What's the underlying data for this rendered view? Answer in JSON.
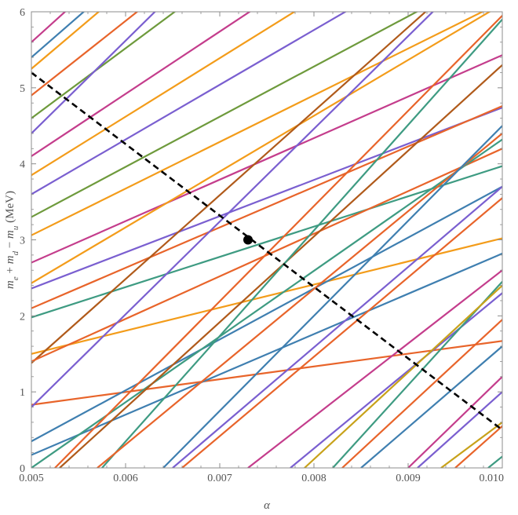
{
  "chart_data": {
    "type": "line",
    "xlabel": "α",
    "ylabel": {
      "parts": [
        {
          "text": "m",
          "italic": true
        },
        {
          "text": "e",
          "italic": true,
          "sub": true
        },
        {
          "text": " + ",
          "italic": false
        },
        {
          "text": "m",
          "italic": true
        },
        {
          "text": "d",
          "italic": true,
          "sub": true
        },
        {
          "text": " − ",
          "italic": false
        },
        {
          "text": "m",
          "italic": true
        },
        {
          "text": "u",
          "italic": true,
          "sub": true
        },
        {
          "text": " (MeV)",
          "italic": false
        }
      ]
    },
    "xlim": [
      0.005,
      0.01
    ],
    "ylim": [
      0,
      6
    ],
    "xticks": [
      {
        "value": 0.005,
        "label": "0.005"
      },
      {
        "value": 0.006,
        "label": "0.006"
      },
      {
        "value": 0.007,
        "label": "0.007"
      },
      {
        "value": 0.008,
        "label": "0.008"
      },
      {
        "value": 0.009,
        "label": "0.009"
      },
      {
        "value": 0.01,
        "label": "0.010"
      }
    ],
    "yticks": [
      {
        "value": 0,
        "label": "0"
      },
      {
        "value": 1,
        "label": "1"
      },
      {
        "value": 2,
        "label": "2"
      },
      {
        "value": 3,
        "label": "3"
      },
      {
        "value": 4,
        "label": "4"
      },
      {
        "value": 5,
        "label": "5"
      },
      {
        "value": 6,
        "label": "6"
      }
    ],
    "grid": false,
    "lines": [
      {
        "color": "#e8642a",
        "x": [
          0.005,
          0.01
        ],
        "y": [
          0.83,
          1.67
        ]
      },
      {
        "color": "#3f7fb0",
        "x": [
          0.005,
          0.01
        ],
        "y": [
          0.17,
          2.82
        ]
      },
      {
        "color": "#f39c1a",
        "x": [
          0.005,
          0.01
        ],
        "y": [
          1.5,
          3.02
        ]
      },
      {
        "color": "#3e9b82",
        "x": [
          0.005,
          0.01
        ],
        "y": [
          1.98,
          3.97
        ]
      },
      {
        "color": "#c43d8c",
        "x": [
          0.005,
          0.01
        ],
        "y": [
          2.7,
          5.43
        ]
      },
      {
        "color": "#7a5fd0",
        "x": [
          0.005,
          0.01
        ],
        "y": [
          2.36,
          4.74
        ]
      },
      {
        "color": "#f39c1a",
        "x": [
          0.005,
          0.01
        ],
        "y": [
          2.43,
          6.1
        ]
      },
      {
        "color": "#e8642a",
        "x": [
          0.005,
          0.01
        ],
        "y": [
          2.1,
          4.76
        ]
      },
      {
        "color": "#3f7fb0",
        "x": [
          0.005,
          0.01
        ],
        "y": [
          0.35,
          3.7
        ]
      },
      {
        "color": "#6e9a3c",
        "x": [
          0.005,
          0.01
        ],
        "y": [
          3.3,
          6.6
        ]
      },
      {
        "color": "#7a5fd0",
        "x": [
          0.005,
          0.01
        ],
        "y": [
          3.6,
          7.2
        ]
      },
      {
        "color": "#f39c1a",
        "x": [
          0.005,
          0.01
        ],
        "y": [
          3.06,
          6.13
        ]
      },
      {
        "color": "#b05a1a",
        "x": [
          0.005,
          0.01
        ],
        "y": [
          1.38,
          6.9
        ]
      },
      {
        "color": "#e8642a",
        "x": [
          0.005,
          0.01
        ],
        "y": [
          1.4,
          4.2
        ]
      },
      {
        "color": "#7a5fd0",
        "x": [
          0.005,
          0.01
        ],
        "y": [
          0.8,
          6.9
        ]
      },
      {
        "color": "#3e9b82",
        "x": [
          0.005,
          0.01
        ],
        "y": [
          0.0,
          4.32
        ]
      },
      {
        "color": "#f39c1a",
        "x": [
          0.005,
          0.01
        ],
        "y": [
          3.85,
          7.7
        ]
      },
      {
        "color": "#c43d8c",
        "x": [
          0.005,
          0.01
        ],
        "y": [
          4.1,
          8.2
        ]
      },
      {
        "color": "#6e9a3c",
        "x": [
          0.005,
          0.01
        ],
        "y": [
          4.6,
          9.2
        ]
      },
      {
        "color": "#7a5fd0",
        "x": [
          0.005,
          0.01
        ],
        "y": [
          4.4,
          10.5
        ]
      },
      {
        "color": "#e8642a",
        "x": [
          0.005,
          0.01
        ],
        "y": [
          4.9,
          9.8
        ]
      },
      {
        "color": "#3f7fb0",
        "x": [
          0.005,
          0.01
        ],
        "y": [
          5.4,
          10.8
        ]
      },
      {
        "color": "#c43d8c",
        "x": [
          0.005,
          0.01
        ],
        "y": [
          5.6,
          11.2
        ]
      },
      {
        "color": "#f39c1a",
        "x": [
          0.005,
          0.01
        ],
        "y": [
          5.25,
          10.5
        ]
      },
      {
        "color": "#e8642a",
        "x": [
          0.00525,
          0.01
        ],
        "y": [
          0.0,
          5.95
        ]
      },
      {
        "color": "#b05a1a",
        "x": [
          0.0053,
          0.01
        ],
        "y": [
          0.0,
          5.3
        ]
      },
      {
        "color": "#3e9b82",
        "x": [
          0.00575,
          0.01
        ],
        "y": [
          0.0,
          5.9
        ]
      },
      {
        "color": "#e8642a",
        "x": [
          0.0057,
          0.01
        ],
        "y": [
          0.0,
          4.4
        ]
      },
      {
        "color": "#3f7fb0",
        "x": [
          0.0064,
          0.01
        ],
        "y": [
          0.0,
          4.5
        ]
      },
      {
        "color": "#7a5fd0",
        "x": [
          0.0065,
          0.01
        ],
        "y": [
          0.0,
          3.7
        ]
      },
      {
        "color": "#e8642a",
        "x": [
          0.0066,
          0.01
        ],
        "y": [
          0.0,
          3.55
        ]
      },
      {
        "color": "#c43d8c",
        "x": [
          0.0073,
          0.01
        ],
        "y": [
          0.0,
          2.6
        ]
      },
      {
        "color": "#7a5fd0",
        "x": [
          0.00775,
          0.01
        ],
        "y": [
          0.0,
          2.3
        ]
      },
      {
        "color": "#3e9b82",
        "x": [
          0.0082,
          0.01
        ],
        "y": [
          0.0,
          2.45
        ]
      },
      {
        "color": "#c8a21a",
        "x": [
          0.0079,
          0.01
        ],
        "y": [
          0.0,
          2.4
        ]
      },
      {
        "color": "#e8642a",
        "x": [
          0.0083,
          0.01
        ],
        "y": [
          0.0,
          1.95
        ]
      },
      {
        "color": "#3f7fb0",
        "x": [
          0.0085,
          0.01
        ],
        "y": [
          0.0,
          1.6
        ]
      },
      {
        "color": "#c43d8c",
        "x": [
          0.009,
          0.01
        ],
        "y": [
          0.0,
          1.2
        ]
      },
      {
        "color": "#7a5fd0",
        "x": [
          0.0091,
          0.01
        ],
        "y": [
          0.0,
          1.0
        ]
      },
      {
        "color": "#c8a21a",
        "x": [
          0.00935,
          0.01
        ],
        "y": [
          0.0,
          0.6
        ]
      },
      {
        "color": "#3e9b82",
        "x": [
          0.00985,
          0.01
        ],
        "y": [
          0.0,
          0.15
        ]
      },
      {
        "color": "#e8642a",
        "x": [
          0.0095,
          0.01
        ],
        "y": [
          0.0,
          0.55
        ]
      }
    ],
    "dashed_line": {
      "color": "#000000",
      "x": [
        0.005,
        0.01
      ],
      "y": [
        5.2,
        0.5
      ]
    },
    "point": {
      "x": 0.0073,
      "y": 3.0,
      "color": "#000000"
    }
  }
}
